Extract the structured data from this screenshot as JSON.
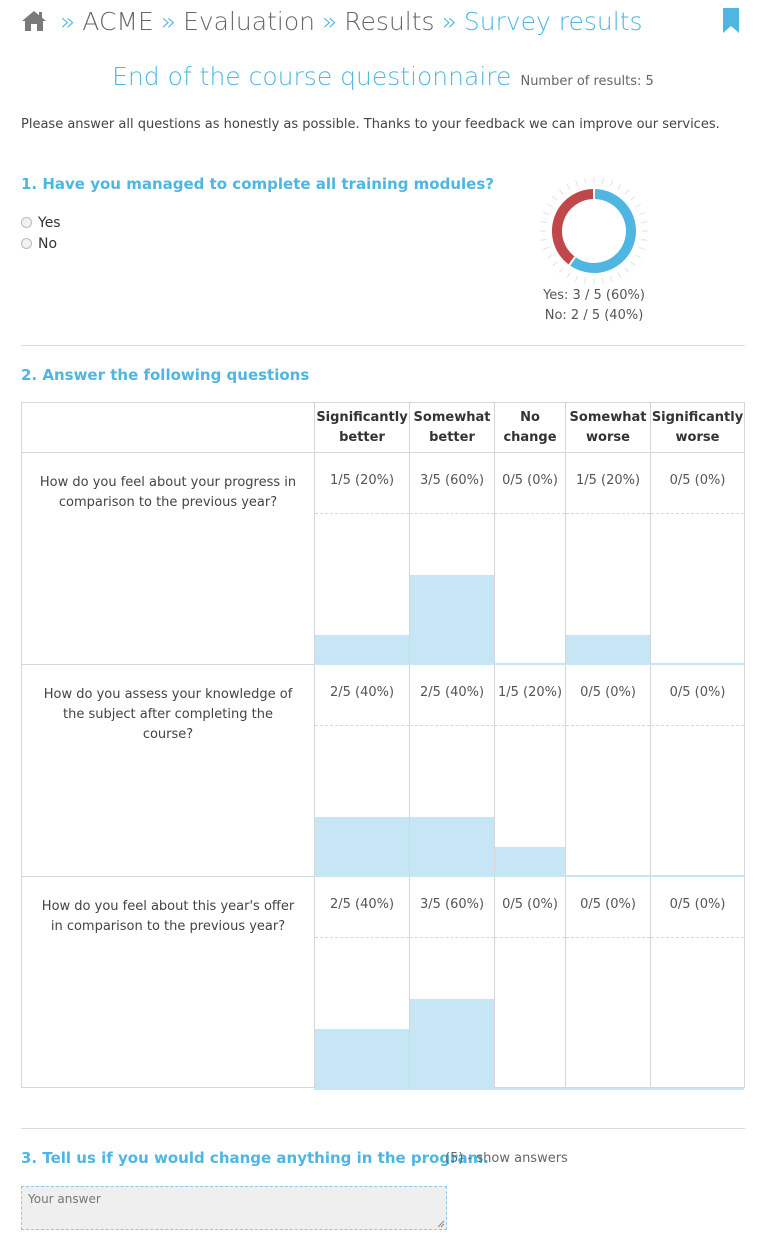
{
  "breadcrumb": {
    "separator": "»",
    "items": [
      "ACME",
      "Evaluation",
      "Results",
      "Survey results"
    ]
  },
  "icons": {
    "home": "home-icon",
    "bookmark": "bookmark-icon"
  },
  "colors": {
    "accent": "#4fb6e2",
    "bar": "#c6e6f5",
    "donut_yes": "#4fb6e2",
    "donut_no": "#c0474a"
  },
  "survey": {
    "title": "End of the course questionnaire",
    "count_label": "Number of results: 5",
    "intro": "Please answer all questions as honestly as possible. Thanks to your feedback we can improve our services."
  },
  "q1": {
    "title": "1. Have you managed to complete all training modules?",
    "options": [
      "Yes",
      "No"
    ],
    "results": [
      {
        "label": "Yes: 3 / 5 (60%)",
        "fraction": 0.6
      },
      {
        "label": "No: 2 / 5 (40%)",
        "fraction": 0.4
      }
    ]
  },
  "q2": {
    "title": "2. Answer the following questions",
    "columns": [
      {
        "line1": "Significantly",
        "line2": "better"
      },
      {
        "line1": "Somewhat",
        "line2": "better"
      },
      {
        "line1": "No",
        "line2": "change"
      },
      {
        "line1": "Somewhat",
        "line2": "worse"
      },
      {
        "line1": "Significantly",
        "line2": "worse"
      }
    ],
    "rows": [
      {
        "question": "How do you feel about your progress in comparison to the previous year?",
        "labels": [
          "1/5 (20%)",
          "3/5 (60%)",
          "0/5 (0%)",
          "1/5 (20%)",
          "0/5 (0%)"
        ],
        "fractions": [
          0.2,
          0.6,
          0,
          0.2,
          0
        ]
      },
      {
        "question": "How do you assess your knowledge of the subject after completing the course?",
        "labels": [
          "2/5 (40%)",
          "2/5 (40%)",
          "1/5 (20%)",
          "0/5 (0%)",
          "0/5 (0%)"
        ],
        "fractions": [
          0.4,
          0.4,
          0.2,
          0,
          0
        ]
      },
      {
        "question": "How do you feel about this year's offer in comparison to the previous year?",
        "labels": [
          "2/5 (40%)",
          "3/5 (60%)",
          "0/5 (0%)",
          "0/5 (0%)",
          "0/5 (0%)"
        ],
        "fractions": [
          0.4,
          0.6,
          0,
          0,
          0
        ]
      }
    ]
  },
  "q3": {
    "title": "3. Tell us if you would change anything in the program.",
    "show_answers": "(5) - show answers",
    "placeholder": "Your answer"
  }
}
